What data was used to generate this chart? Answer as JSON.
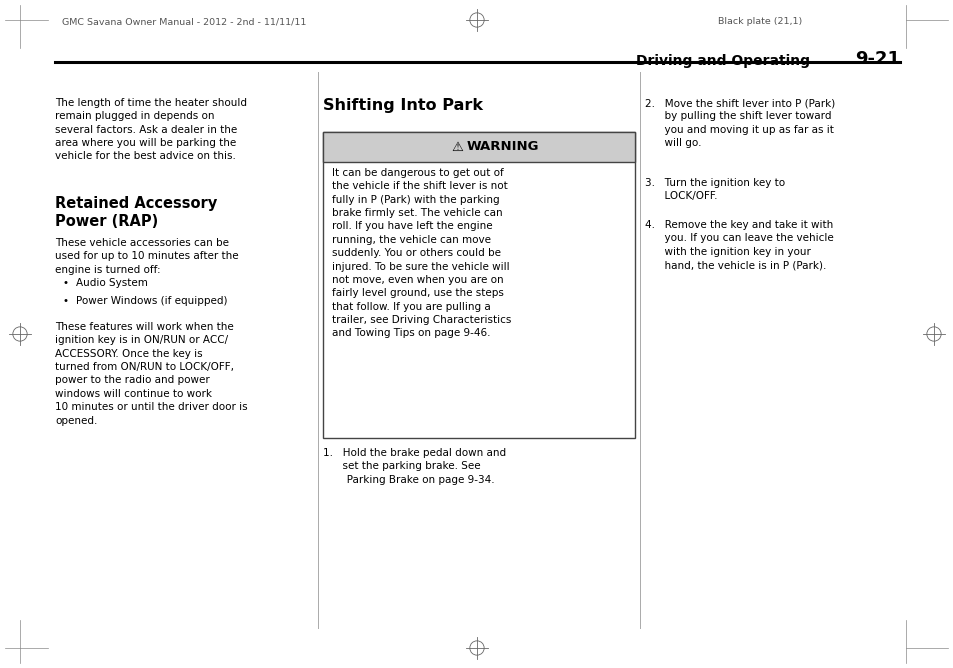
{
  "bg_color": "#ffffff",
  "page_width": 9.54,
  "page_height": 6.68,
  "dpi": 100,
  "header_left": "GMC Savana Owner Manual - 2012 - 2nd - 11/11/11",
  "header_right": "Black plate (21,1)",
  "section_title": "Driving and Operating",
  "page_number": "9-21",
  "col1_intro": "The length of time the heater should\nremain plugged in depends on\nseveral factors. Ask a dealer in the\narea where you will be parking the\nvehicle for the best advice on this.",
  "col1_subheading": "Retained Accessory\nPower (RAP)",
  "col1_body1": "These vehicle accessories can be\nused for up to 10 minutes after the\nengine is turned off:",
  "col1_bullets": [
    "Audio System",
    "Power Windows (if equipped)"
  ],
  "col1_body2": "These features will work when the\nignition key is in ON/RUN or ACC/\nACCESSORY. Once the key is\nturned from ON/RUN to LOCK/OFF,\npower to the radio and power\nwindows will continue to work\n10 minutes or until the driver door is\nopened.",
  "col2_heading": "Shifting Into Park",
  "warning_title": "WARNING",
  "warning_body": "It can be dangerous to get out of\nthe vehicle if the shift lever is not\nfully in P (Park) with the parking\nbrake firmly set. The vehicle can\nroll. If you have left the engine\nrunning, the vehicle can move\nsuddenly. You or others could be\ninjured. To be sure the vehicle will\nnot move, even when you are on\nfairly level ground, use the steps\nthat follow. If you are pulling a\ntrailer, see Driving Characteristics\nand Towing Tips on page 9-46.",
  "col2_step1_a": "1.   Hold the brake pedal down and",
  "col2_step1_b": "     set the parking brake. See",
  "col2_step1_c": "     Parking Brake on page 9-34.",
  "col3_step2_a": "2.   Move the shift lever into P (Park)",
  "col3_step2_b": "     by pulling the shift lever toward",
  "col3_step2_c": "     you and moving it up as far as it",
  "col3_step2_d": "     will go.",
  "col3_step3_a": "3.   Turn the ignition key to",
  "col3_step3_b": "     LOCK/OFF.",
  "col3_step4_a": "4.   Remove the key and take it with",
  "col3_step4_b": "     you. If you can leave the vehicle",
  "col3_step4_c": "     with the ignition key in your",
  "col3_step4_d": "     hand, the vehicle is in P (Park).",
  "text_color": "#000000",
  "header_color": "#555555",
  "warning_header_bg": "#cccccc",
  "warning_body_bg": "#ffffff",
  "warning_border": "#444444",
  "col_divider_color": "#aaaaaa",
  "section_line_color": "#000000"
}
